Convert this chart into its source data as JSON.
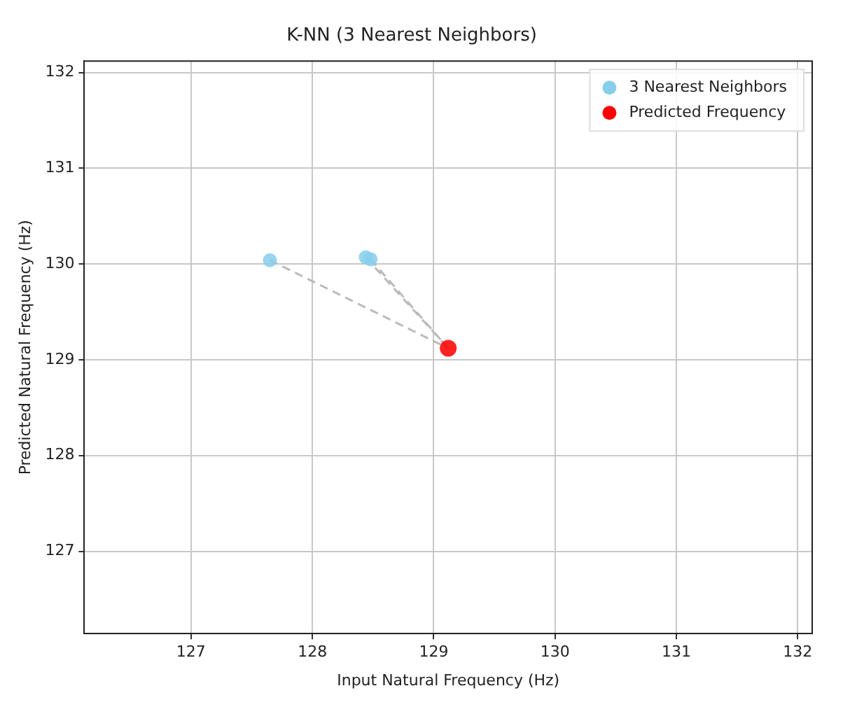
{
  "chart_data": {
    "type": "scatter",
    "title": "K-NN (3 Nearest Neighbors)",
    "xlabel": "Input Natural Frequency (Hz)",
    "ylabel": "Predicted Natural Frequency (Hz)",
    "xlim": [
      126.12,
      132.12
    ],
    "ylim": [
      126.14,
      132.12
    ],
    "xticks": [
      127,
      128,
      129,
      130,
      131,
      132
    ],
    "yticks": [
      127,
      128,
      129,
      130,
      131,
      132
    ],
    "grid": true,
    "legend": "top right",
    "marker": "circle",
    "series": [
      {
        "type": "line",
        "color": "#bbbbbb",
        "line_style": "dashed",
        "marker": "none",
        "x": [
          127.65,
          129.12
        ],
        "values": [
          130.04,
          129.12
        ]
      },
      {
        "type": "line",
        "color": "#bbbbbb",
        "line_style": "dashed",
        "marker": "none",
        "x": [
          128.44,
          129.12
        ],
        "values": [
          130.07,
          129.12
        ]
      },
      {
        "type": "line",
        "color": "#bbbbbb",
        "line_style": "dashed",
        "marker": "none",
        "x": [
          128.48,
          129.12
        ],
        "values": [
          130.05,
          129.12
        ]
      },
      {
        "name": "3 Nearest Neighbors",
        "color": "#87ceeb",
        "x": [
          127.65,
          128.44,
          128.48
        ],
        "values": [
          130.04,
          130.07,
          130.05
        ]
      },
      {
        "name": "Predicted Frequency",
        "color": "#ff0000",
        "x": [
          129.12
        ],
        "values": [
          129.12
        ]
      }
    ]
  }
}
